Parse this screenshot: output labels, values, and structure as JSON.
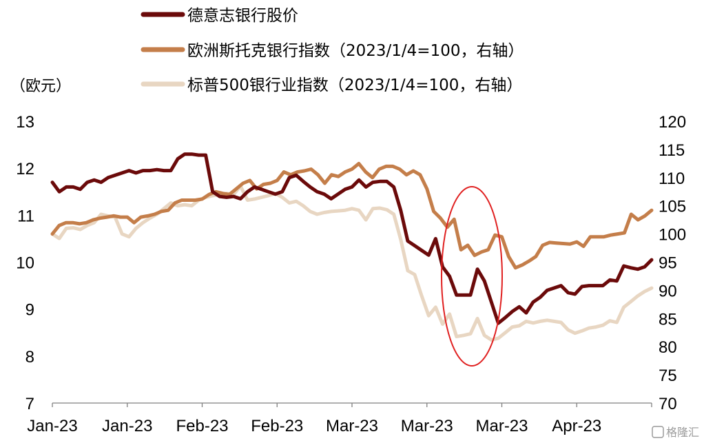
{
  "chart_data": {
    "type": "line",
    "left_unit": "（欧元）",
    "left_axis": {
      "min": 7,
      "max": 13,
      "ticks": [
        7,
        8,
        9,
        10,
        11,
        12,
        13
      ]
    },
    "right_axis": {
      "min": 70,
      "max": 120,
      "ticks": [
        70,
        75,
        80,
        85,
        90,
        95,
        100,
        105,
        110,
        115,
        120
      ]
    },
    "x_tick_labels": [
      "Jan-23",
      "Jan-23",
      "Feb-23",
      "Feb-23",
      "Mar-23",
      "Mar-23",
      "Mar-23",
      "Apr-23"
    ],
    "series": [
      {
        "name": "德意志银行股价",
        "axis": "left",
        "color": "#6b0a0a",
        "values": [
          11.7,
          11.5,
          11.6,
          11.6,
          11.55,
          11.7,
          11.75,
          11.7,
          11.8,
          11.85,
          11.9,
          11.95,
          11.9,
          11.95,
          11.95,
          11.97,
          11.95,
          11.95,
          12.2,
          12.3,
          12.3,
          12.28,
          12.28,
          11.5,
          11.4,
          11.38,
          11.4,
          11.35,
          11.5,
          11.6,
          11.55,
          11.5,
          11.45,
          11.5,
          11.8,
          11.85,
          11.72,
          11.6,
          11.5,
          11.45,
          11.35,
          11.45,
          11.55,
          11.6,
          11.75,
          11.6,
          11.7,
          11.72,
          11.72,
          11.6,
          11.1,
          10.45,
          10.35,
          10.25,
          10.15,
          10.5,
          9.9,
          9.7,
          9.3,
          9.3,
          9.3,
          9.85,
          9.6,
          9.15,
          8.7,
          8.82,
          8.95,
          9.05,
          8.92,
          9.15,
          9.25,
          9.4,
          9.45,
          9.5,
          9.35,
          9.32,
          9.48,
          9.5,
          9.5,
          9.5,
          9.62,
          9.6,
          9.92,
          9.88,
          9.85,
          9.9,
          10.05
        ]
      },
      {
        "name": "欧洲斯托克银行指数（2023/1/4=100，右轴）",
        "axis": "right",
        "color": "#c47e4a",
        "values": [
          100,
          101.5,
          102,
          102,
          101.8,
          102,
          102.5,
          102.8,
          103,
          103.2,
          103,
          103,
          102,
          103,
          103.2,
          103.5,
          104,
          104.2,
          105.5,
          106,
          106,
          106,
          106.2,
          107,
          107.5,
          107.2,
          107,
          108,
          109,
          109.5,
          108,
          108.8,
          109,
          109.5,
          111,
          110.5,
          111,
          111.2,
          111.5,
          110.5,
          109,
          110.5,
          110.2,
          111,
          111.5,
          112.5,
          111,
          110,
          111.5,
          112,
          112,
          111.5,
          110.5,
          111.2,
          110.5,
          108,
          104,
          102.8,
          101.2,
          102.6,
          97.2,
          98,
          96.2,
          96.8,
          97.2,
          99.8,
          99.5,
          96,
          94,
          94.5,
          95.2,
          96,
          98,
          98.5,
          98.4,
          98.3,
          98.2,
          98.6,
          97.8,
          99.5,
          99.5,
          99.5,
          99.8,
          100,
          100.2,
          103.5,
          102.5,
          103.2,
          104.2
        ]
      },
      {
        "name": "标普500银行业指数（2023/1/4=100，右轴）",
        "axis": "right",
        "color": "#e8d6c2",
        "values": [
          100,
          99.2,
          101,
          101.1,
          100.8,
          101.5,
          102,
          103.5,
          103.2,
          103,
          100,
          99.5,
          101,
          102,
          102.8,
          103.5,
          104.5,
          105.5,
          105,
          105.2,
          105,
          106,
          106.5,
          106.8,
          107,
          107.2,
          107,
          108.5,
          106,
          106.2,
          106.5,
          106.8,
          107.2,
          106.5,
          105.5,
          105.8,
          105,
          104,
          103.5,
          103.8,
          104,
          104.1,
          104.2,
          104.5,
          104.2,
          102.5,
          104.5,
          104.6,
          104.3,
          103.5,
          99,
          93.5,
          92.8,
          89,
          85.5,
          87,
          84,
          85.8,
          81.8,
          82,
          82.3,
          85,
          82,
          81.2,
          81.5,
          82.5,
          83.5,
          83.7,
          84.5,
          84.2,
          84.5,
          84.7,
          84.5,
          84.3,
          83,
          82.4,
          82.8,
          83.3,
          83.5,
          83.8,
          84.6,
          84.3,
          87,
          88,
          89,
          89.8,
          90.4
        ]
      }
    ]
  },
  "highlight": {
    "shape": "ellipse",
    "color": "#e02020"
  },
  "watermark": "格隆汇"
}
